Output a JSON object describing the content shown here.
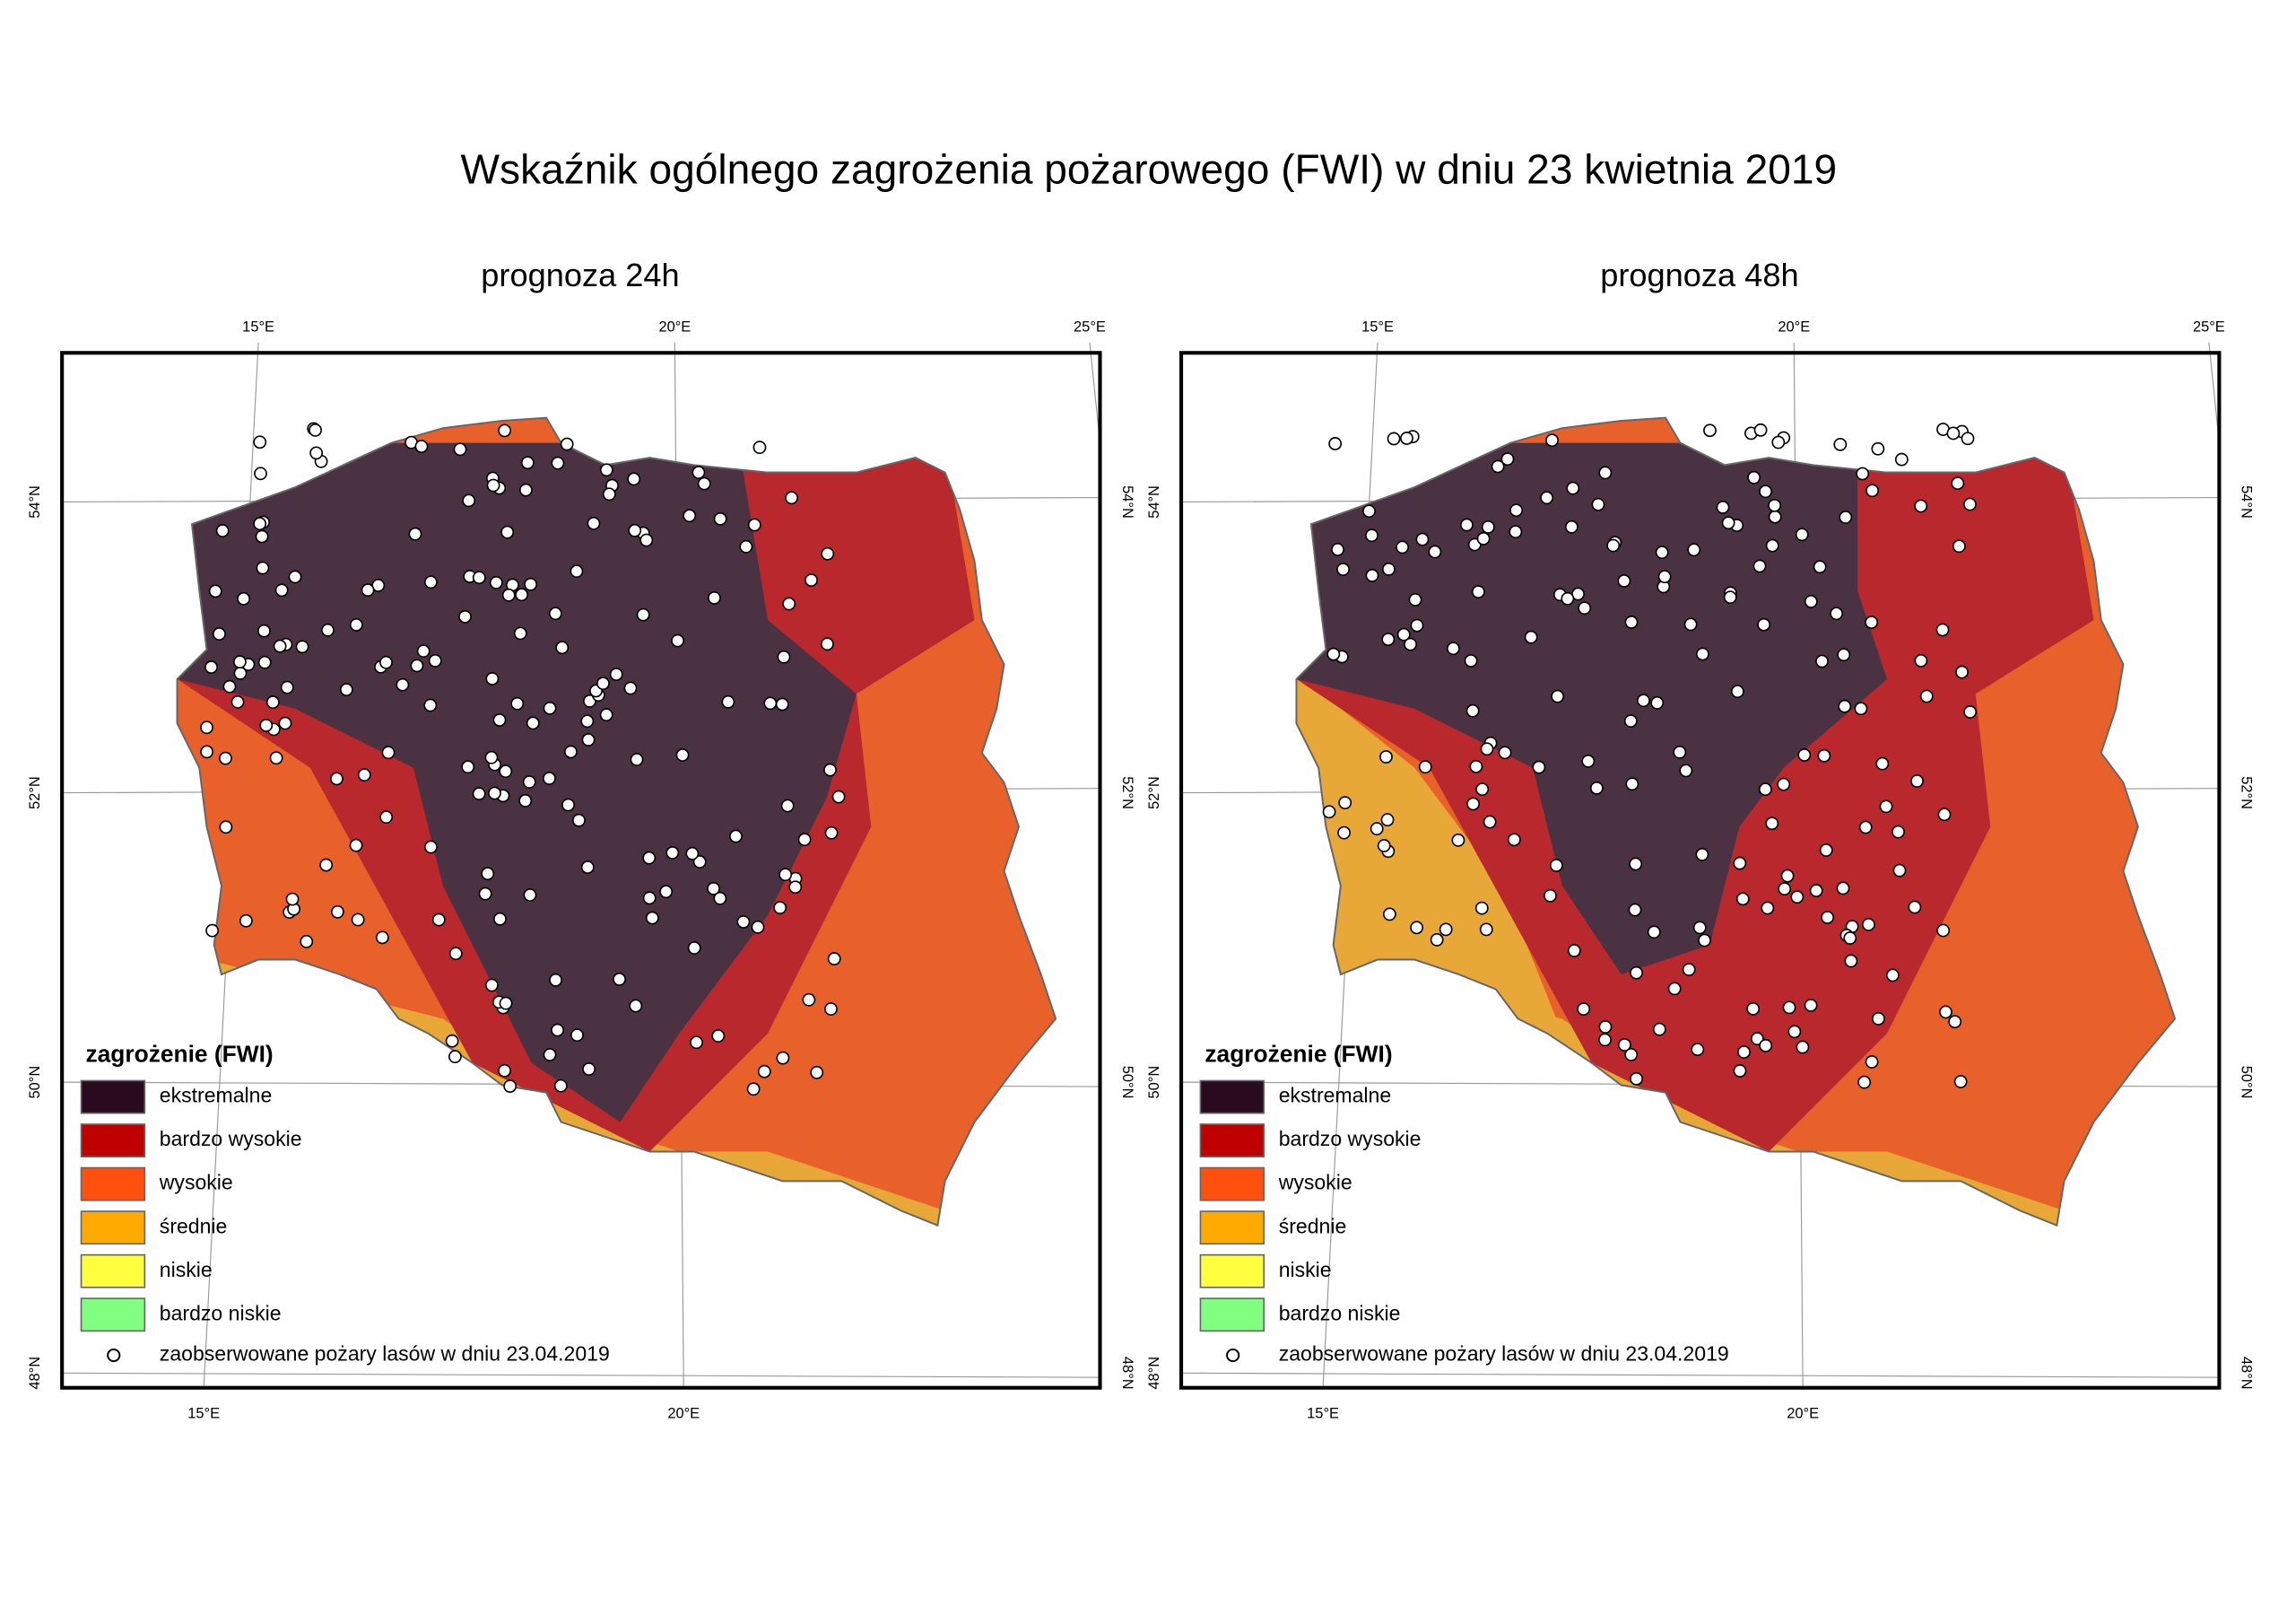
{
  "title": "Wskaźnik ogólnego zagrożenia pożarowego (FWI) w dniu 23 kwietnia 2019",
  "maps": [
    {
      "subtitle": "prognoza 24h",
      "lon_top": [
        "15°E",
        "20°E",
        "25°E"
      ],
      "lon_bottom": [
        "15°E",
        "20°E"
      ],
      "lat_left": [
        "54°N",
        "52°N",
        "50°N",
        "48°N"
      ],
      "lat_right": [
        "54°N",
        "52°N",
        "50°N",
        "48°N"
      ]
    },
    {
      "subtitle": "prognoza 48h",
      "lon_top": [
        "15°E",
        "20°E",
        "25°E"
      ],
      "lon_bottom": [
        "15°E",
        "20°E"
      ],
      "lat_left": [
        "54°N",
        "52°N",
        "50°N",
        "48°N"
      ],
      "lat_right": [
        "54°N",
        "52°N",
        "50°N",
        "48°N"
      ]
    }
  ],
  "legend": {
    "title": "zagrożenie (FWI)",
    "items": [
      {
        "label": "ekstremalne",
        "color": "#2a0a1e"
      },
      {
        "label": "bardzo wysokie",
        "color": "#c00000"
      },
      {
        "label": "wysokie",
        "color": "#ff5010"
      },
      {
        "label": "średnie",
        "color": "#ffaa00"
      },
      {
        "label": "niskie",
        "color": "#ffff40"
      },
      {
        "label": "bardzo niskie",
        "color": "#80ff80"
      }
    ],
    "fires_label": "zaobserwowane pożary lasów w dniu 23.04.2019"
  }
}
